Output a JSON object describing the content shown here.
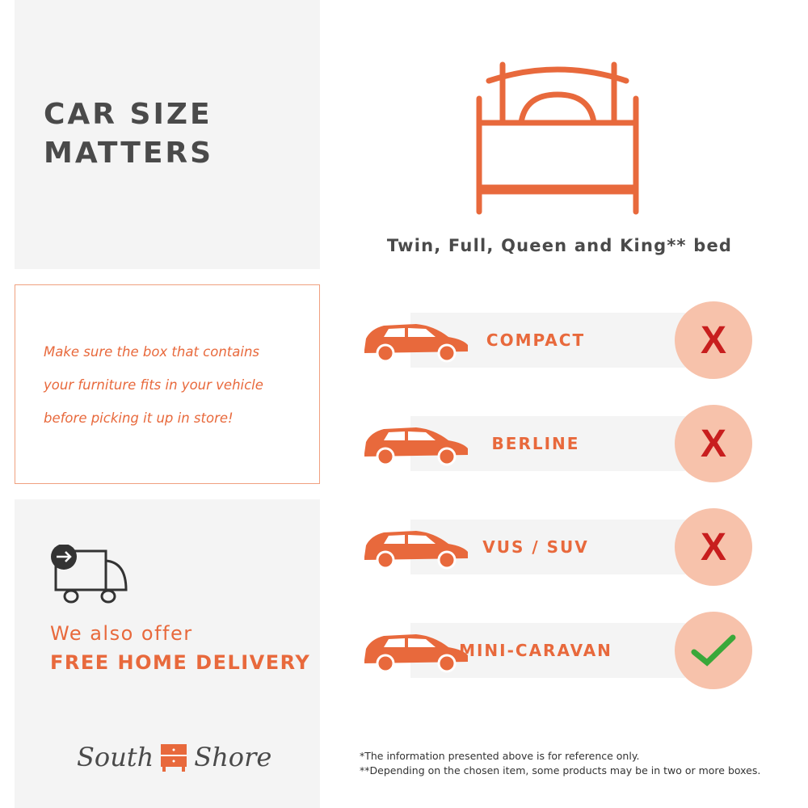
{
  "title_lines": [
    "CAR SIZE",
    "MATTERS"
  ],
  "message_lines": [
    "Make sure the box that contains",
    "your furniture fits in your vehicle",
    "before picking it up in store!"
  ],
  "offer": {
    "line1": "We also offer",
    "line2": "FREE HOME DELIVERY"
  },
  "logo": {
    "left": "South",
    "right": "Shore"
  },
  "bed_caption": "Twin, Full, Queen and King** bed",
  "vehicles": [
    {
      "label": "COMPACT",
      "fits": false,
      "mark": "X"
    },
    {
      "label": "BERLINE",
      "fits": false,
      "mark": "X"
    },
    {
      "label": "VUS / SUV",
      "fits": false,
      "mark": "X"
    },
    {
      "label": "MINI-CARAVAN",
      "fits": true,
      "mark": "check"
    }
  ],
  "footnotes": [
    "*The information presented above is for reference only.",
    "**Depending on the chosen item, some products may be in two or more boxes."
  ],
  "colors": {
    "accent": "#e8693c",
    "text": "#4a4a4a",
    "no": "#c81e1e",
    "yes": "#3aa83a",
    "circle": "#f7c2ab"
  }
}
